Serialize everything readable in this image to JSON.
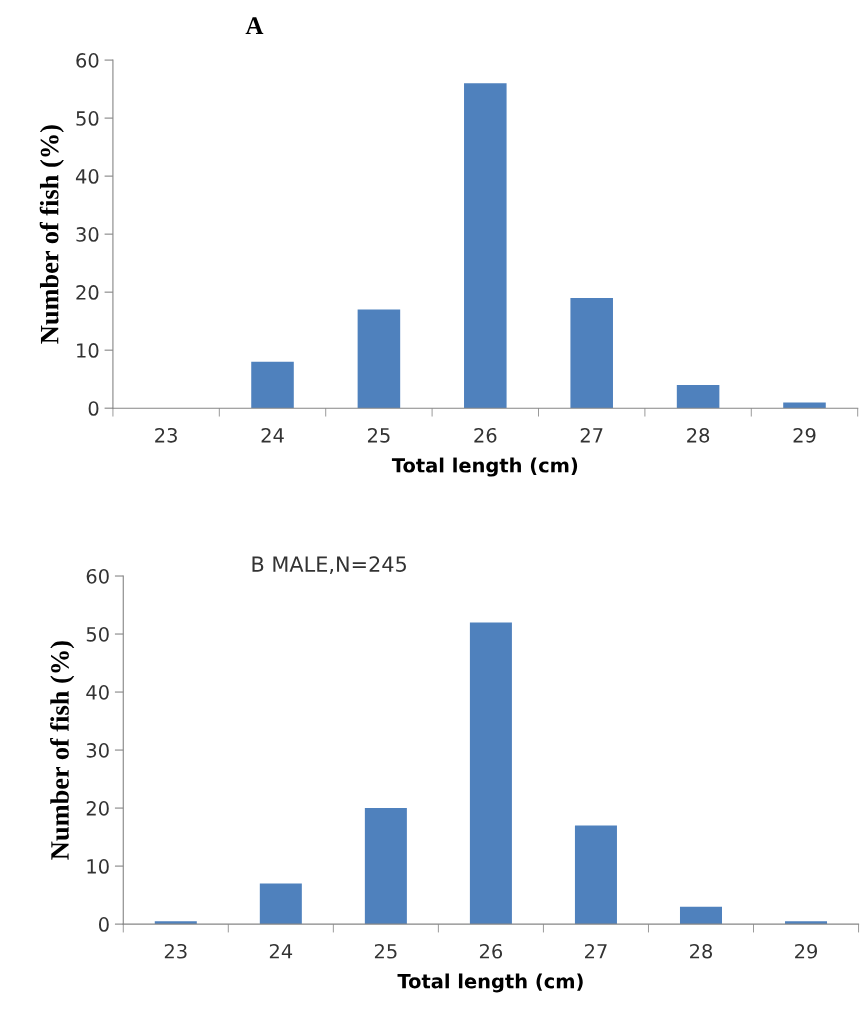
{
  "chart_data": [
    {
      "type": "bar",
      "title": "A",
      "categories": [
        "23",
        "24",
        "25",
        "26",
        "27",
        "28",
        "29"
      ],
      "values": [
        0,
        8,
        17,
        56,
        19,
        4,
        1
      ],
      "color": "#4f81bd",
      "xlabel": "Total length (cm)",
      "ylabel": "Number of fish (%)",
      "ylim": [
        0,
        60
      ],
      "yticks": [
        0,
        10,
        20,
        30,
        40,
        50,
        60
      ]
    },
    {
      "type": "bar",
      "title": "B MALE,N=245",
      "categories": [
        "23",
        "24",
        "25",
        "26",
        "27",
        "28",
        "29"
      ],
      "values": [
        0.5,
        7,
        20,
        52,
        17,
        3,
        0.5
      ],
      "color": "#4f81bd",
      "xlabel": "Total length (cm)",
      "ylabel": "Number of fish (%)",
      "ylim": [
        0,
        60
      ],
      "yticks": [
        0,
        10,
        20,
        30,
        40,
        50,
        60
      ]
    }
  ]
}
